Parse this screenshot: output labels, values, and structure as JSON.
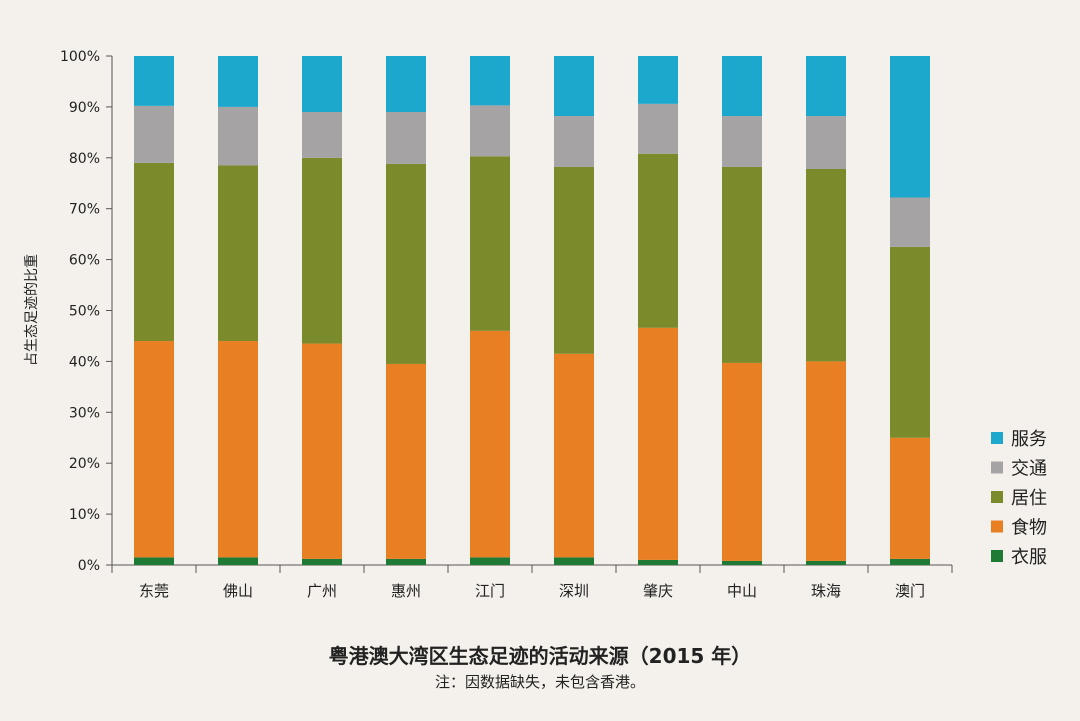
{
  "chart_data": {
    "type": "bar",
    "stacked": true,
    "title": "粤港澳大湾区生态足迹的活动来源（2015 年）",
    "note": "注：因数据缺失，未包含香港。",
    "ylabel": "占生态足迹的比重",
    "xlabel": "",
    "ylim": [
      0,
      100
    ],
    "yticks": [
      "0%",
      "10%",
      "20%",
      "30%",
      "40%",
      "50%",
      "60%",
      "70%",
      "80%",
      "90%",
      "100%"
    ],
    "categories": [
      "东莞",
      "佛山",
      "广州",
      "惠州",
      "江门",
      "深圳",
      "肇庆",
      "中山",
      "珠海",
      "澳门"
    ],
    "legend_position": "right",
    "series": [
      {
        "name": "衣服",
        "color": "#1e7a35",
        "values": [
          1.5,
          1.5,
          1.2,
          1.2,
          1.5,
          1.5,
          1.0,
          0.8,
          0.8,
          1.2
        ]
      },
      {
        "name": "食物",
        "color": "#e87f22",
        "values": [
          42.5,
          42.5,
          42.3,
          38.3,
          44.5,
          40.0,
          45.6,
          38.9,
          39.2,
          23.8
        ]
      },
      {
        "name": "居住",
        "color": "#7b8a2b",
        "values": [
          35.0,
          34.5,
          36.5,
          39.3,
          34.3,
          36.7,
          34.2,
          38.5,
          37.8,
          37.5
        ]
      },
      {
        "name": "交通",
        "color": "#a6a3a5",
        "values": [
          11.2,
          11.5,
          9.0,
          10.2,
          10.0,
          10.0,
          9.8,
          10.0,
          10.4,
          9.7
        ]
      },
      {
        "name": "服务",
        "color": "#1ba8cc",
        "values": [
          9.8,
          10.0,
          11.0,
          11.0,
          9.7,
          11.8,
          9.4,
          11.8,
          11.8,
          27.8
        ]
      }
    ]
  }
}
